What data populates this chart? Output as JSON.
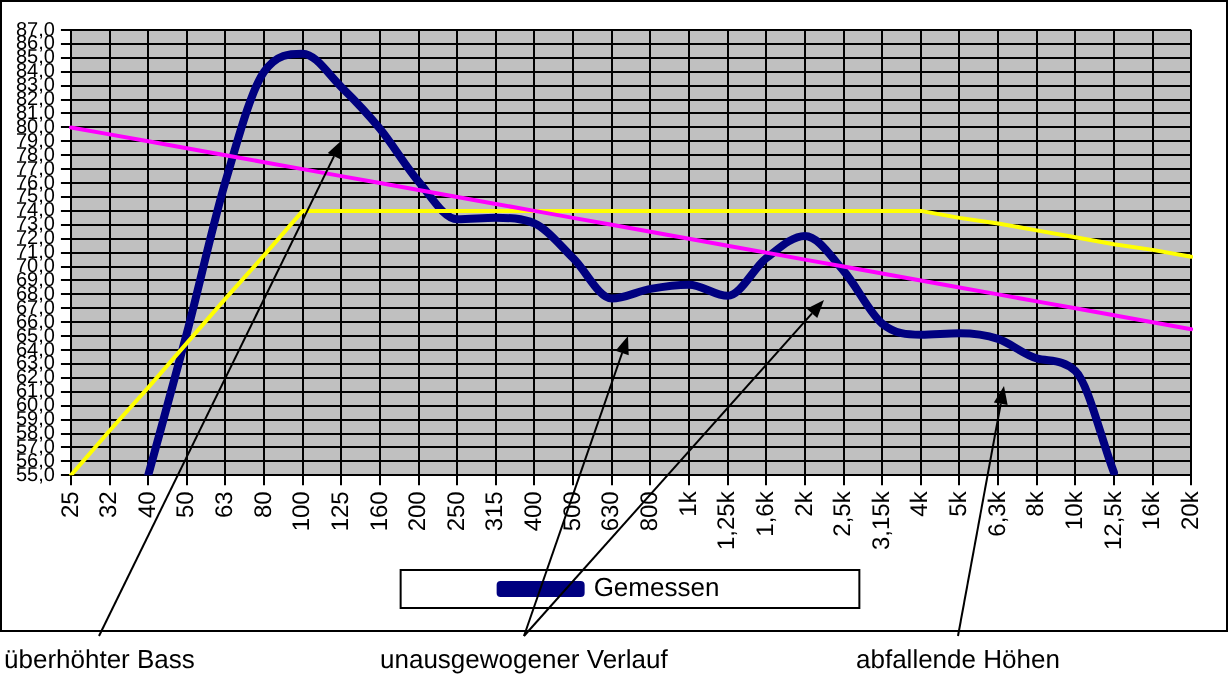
{
  "chart_data": {
    "type": "line",
    "categories": [
      "25",
      "32",
      "40",
      "50",
      "63",
      "80",
      "100",
      "125",
      "160",
      "200",
      "250",
      "315",
      "400",
      "500",
      "630",
      "800",
      "1k",
      "1,25k",
      "1,6k",
      "2k",
      "2,5k",
      "3,15k",
      "4k",
      "5k",
      "6,3k",
      "8k",
      "10k",
      "12,5k",
      "16k",
      "20k"
    ],
    "series": [
      {
        "color": "#ff00ff",
        "values": [
          80,
          79.5,
          79,
          78.5,
          78,
          77.5,
          77,
          76.5,
          76,
          75.5,
          75,
          74.5,
          74,
          73.5,
          73,
          72.5,
          72,
          71.5,
          71,
          70.5,
          70,
          69.5,
          69,
          68.5,
          68,
          67.5,
          67,
          66.5,
          66,
          65.5
        ]
      },
      {
        "color": "#ffff00",
        "values": [
          55,
          58.2,
          61.3,
          64.5,
          67.7,
          70.8,
          74,
          74,
          74,
          74,
          74,
          74,
          74,
          74,
          74,
          74,
          74,
          74,
          74,
          74,
          74,
          74,
          74,
          73.5,
          73.1,
          72.6,
          72.1,
          71.6,
          71.2,
          70.7
        ]
      },
      {
        "name": "Gemessen",
        "color": "#000080",
        "values": [
          null,
          null,
          55,
          65.2,
          76.1,
          84,
          85.3,
          82.9,
          79.9,
          76.1,
          73.4,
          73.5,
          73.1,
          70.6,
          67.7,
          68.4,
          68.7,
          67.9,
          70.6,
          72.2,
          69.7,
          65.9,
          65.1,
          65.2,
          64.8,
          63.4,
          62.5,
          55.2,
          null,
          null
        ]
      }
    ],
    "ylim": [
      55,
      87
    ],
    "yticks": [
      {
        "value": 55,
        "label": "55,0"
      },
      {
        "value": 56,
        "label": "56,0"
      },
      {
        "value": 57,
        "label": "57,0"
      },
      {
        "value": 58,
        "label": "58,0"
      },
      {
        "value": 59,
        "label": "59,0"
      },
      {
        "value": 60,
        "label": "60,0"
      },
      {
        "value": 61,
        "label": "61,0"
      },
      {
        "value": 62,
        "label": "62,0"
      },
      {
        "value": 63,
        "label": "63,0"
      },
      {
        "value": 64,
        "label": "64,0"
      },
      {
        "value": 65,
        "label": "65,0"
      },
      {
        "value": 66,
        "label": "66,0"
      },
      {
        "value": 67,
        "label": "67,0"
      },
      {
        "value": 68,
        "label": "68,0"
      },
      {
        "value": 69,
        "label": "69,0"
      },
      {
        "value": 70,
        "label": "70,0"
      },
      {
        "value": 71,
        "label": "71,0"
      },
      {
        "value": 72,
        "label": "72,0"
      },
      {
        "value": 73,
        "label": "73,0"
      },
      {
        "value": 74,
        "label": "74,0"
      },
      {
        "value": 75,
        "label": "75,0"
      },
      {
        "value": 76,
        "label": "76,0"
      },
      {
        "value": 77,
        "label": "77,0"
      },
      {
        "value": 78,
        "label": "78,0"
      },
      {
        "value": 79,
        "label": "79,0"
      },
      {
        "value": 80,
        "label": "80,0"
      },
      {
        "value": 81,
        "label": "81,0"
      },
      {
        "value": 82,
        "label": "82,0"
      },
      {
        "value": 83,
        "label": "83,0"
      },
      {
        "value": 84,
        "label": "84,0"
      },
      {
        "value": 85,
        "label": "85,0"
      },
      {
        "value": 86,
        "label": "86,0"
      },
      {
        "value": 87,
        "label": "87,0"
      }
    ],
    "grid": true,
    "legend": "bottom",
    "marker": "none",
    "annotations": [
      "überhöhter Bass",
      "unausgewogener Verlauf",
      "abfallende Höhen"
    ]
  }
}
